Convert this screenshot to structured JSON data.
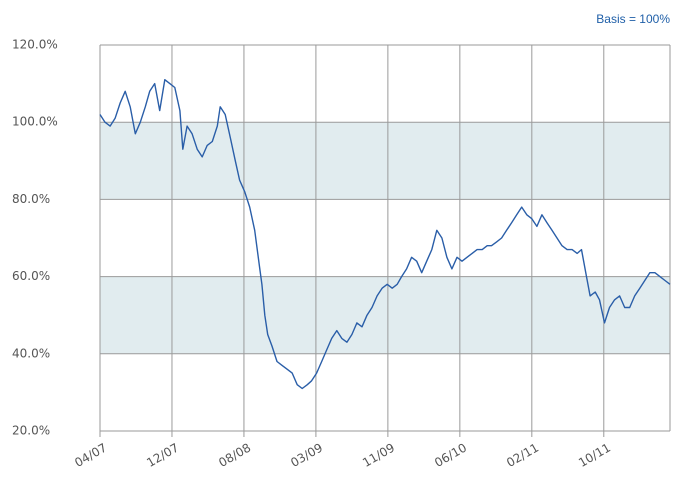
{
  "chart_data": {
    "type": "line",
    "subtitle": "Basis = 100%",
    "x": [
      0,
      0.07,
      0.14,
      0.21,
      0.28,
      0.35,
      0.42,
      0.49,
      0.56,
      0.63,
      0.69,
      0.76,
      0.83,
      0.9,
      0.97,
      1.04,
      1.11,
      1.15,
      1.21,
      1.28,
      1.35,
      1.42,
      1.49,
      1.56,
      1.63,
      1.67,
      1.74,
      1.81,
      1.88,
      1.94,
      2.01,
      2.08,
      2.15,
      2.22,
      2.25,
      2.29,
      2.33,
      2.39,
      2.46,
      2.53,
      2.6,
      2.67,
      2.74,
      2.81,
      2.88,
      2.94,
      3.01,
      3.08,
      3.15,
      3.22,
      3.29,
      3.36,
      3.43,
      3.5,
      3.57,
      3.64,
      3.71,
      3.78,
      3.85,
      3.92,
      3.99,
      4.06,
      4.13,
      4.19,
      4.26,
      4.33,
      4.4,
      4.47,
      4.54,
      4.61,
      4.68,
      4.75,
      4.82,
      4.89,
      4.96,
      5.03,
      5.1,
      5.17,
      5.24,
      5.31,
      5.38,
      5.44,
      5.51,
      5.58,
      5.65,
      5.72,
      5.79,
      5.86,
      5.93,
      6.0,
      6.07,
      6.14,
      6.21,
      6.28,
      6.35,
      6.42,
      6.49,
      6.56,
      6.63,
      6.69,
      6.76,
      6.81,
      6.88,
      6.94,
      7.01,
      7.08,
      7.15,
      7.22,
      7.29,
      7.36,
      7.43,
      7.5,
      7.57,
      7.64,
      7.71,
      7.78,
      7.85,
      7.92
    ],
    "series": [
      {
        "color": "#2a5ea8",
        "values": [
          102,
          100,
          99,
          101,
          105,
          108,
          104,
          97,
          100,
          104,
          108,
          110,
          103,
          111,
          110,
          109,
          103,
          93,
          99,
          97,
          93,
          91,
          94,
          95,
          99,
          104,
          102,
          96,
          90,
          85,
          82,
          78,
          72,
          62,
          58,
          50,
          45,
          42,
          38,
          37,
          36,
          35,
          32,
          31,
          32,
          33,
          35,
          38,
          41,
          44,
          46,
          44,
          43,
          45,
          48,
          47,
          50,
          52,
          55,
          57,
          58,
          57,
          58,
          60,
          62,
          65,
          64,
          61,
          64,
          67,
          72,
          70,
          65,
          62,
          65,
          64,
          65,
          66,
          67,
          67,
          68,
          68,
          69,
          70,
          72,
          74,
          76,
          78,
          76,
          75,
          73,
          76,
          74,
          72,
          70,
          68,
          67,
          67,
          66,
          67,
          60,
          55,
          56,
          54,
          48,
          52,
          54,
          55,
          52,
          52,
          55,
          57,
          59,
          61,
          61,
          60,
          59,
          58
        ]
      }
    ],
    "xlim": [
      0,
      7.92
    ],
    "xticks": [
      {
        "value": 0,
        "label": "04/07"
      },
      {
        "value": 1,
        "label": "12/07"
      },
      {
        "value": 2,
        "label": "08/08"
      },
      {
        "value": 3,
        "label": "03/09"
      },
      {
        "value": 4,
        "label": "11/09"
      },
      {
        "value": 5,
        "label": "06/10"
      },
      {
        "value": 6,
        "label": "02/11"
      },
      {
        "value": 7,
        "label": "10/11"
      }
    ],
    "ylim": [
      20,
      120
    ],
    "yticks": [
      {
        "value": 20,
        "label": "20.0%"
      },
      {
        "value": 40,
        "label": "40.0%"
      },
      {
        "value": 60,
        "label": "60.0%"
      },
      {
        "value": 80,
        "label": "80.0%"
      },
      {
        "value": 100,
        "label": "100.0%"
      },
      {
        "value": 120,
        "label": "120.0%"
      }
    ],
    "grid": true,
    "alternating_bands": true,
    "band_color": "#e1ecef"
  }
}
